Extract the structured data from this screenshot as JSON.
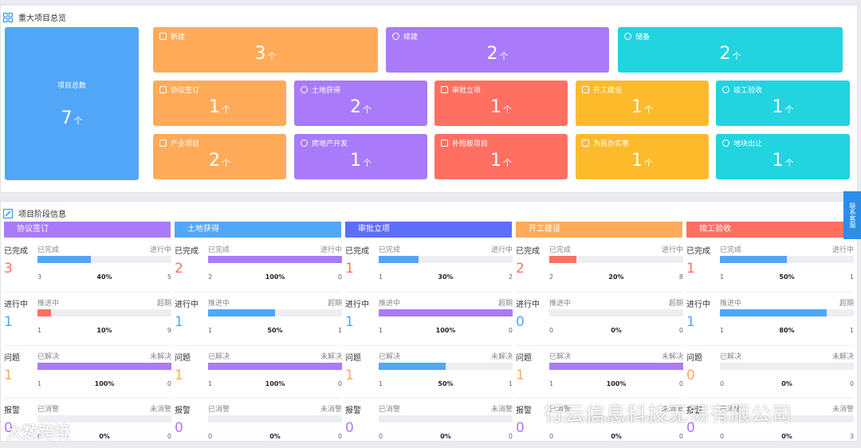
{
  "overview": {
    "title": "重大项目总览",
    "total": {
      "label": "项目总数",
      "value": "7",
      "unit": "个"
    },
    "cards": [
      {
        "label": "新建",
        "value": "3",
        "unit": "个",
        "icon": "calendar-icon"
      },
      {
        "label": "续建",
        "value": "2",
        "unit": "个",
        "icon": "search-icon"
      },
      {
        "label": "储备",
        "value": "2",
        "unit": "个",
        "icon": "check-circle-icon"
      },
      {
        "label": "协议签订",
        "value": "1",
        "unit": "个",
        "icon": "calendar-icon"
      },
      {
        "label": "土地获得",
        "value": "2",
        "unit": "个",
        "icon": "search-icon"
      },
      {
        "label": "审批立项",
        "value": "1",
        "unit": "个",
        "icon": "document-icon"
      },
      {
        "label": "开工建设",
        "value": "1",
        "unit": "个",
        "icon": "cube-icon"
      },
      {
        "label": "竣工验收",
        "value": "1",
        "unit": "个",
        "icon": "check-circle-icon"
      },
      {
        "label": "产业项目",
        "value": "2",
        "unit": "个",
        "icon": "calendar-icon"
      },
      {
        "label": "房地产开发",
        "value": "1",
        "unit": "个",
        "icon": "search-icon"
      },
      {
        "label": "补短板项目",
        "value": "1",
        "unit": "个",
        "icon": "document-icon"
      },
      {
        "label": "为民办实事",
        "value": "1",
        "unit": "个",
        "icon": "cube-icon"
      },
      {
        "label": "地块出让",
        "value": "1",
        "unit": "个",
        "icon": "check-circle-icon"
      }
    ]
  },
  "stages": {
    "title": "项目阶段信息",
    "columns": [
      {
        "name": "协议签订",
        "color": "#a97bfb",
        "metrics": [
          {
            "name": "已完成",
            "value": "3",
            "left": "已完成",
            "right": "进行中",
            "fill": 0.4,
            "lc": "3",
            "pct": "40%",
            "rc": "5"
          },
          {
            "name": "进行中",
            "value": "1",
            "left": "推进中",
            "right": "超期",
            "fill": 0.1,
            "lc": "1",
            "pct": "10%",
            "rc": "9"
          },
          {
            "name": "问题",
            "value": "1",
            "left": "已解决",
            "right": "未解决",
            "fill": 1.0,
            "lc": "1",
            "pct": "100%",
            "rc": "0"
          },
          {
            "name": "报警",
            "value": "0",
            "left": "已消警",
            "right": "未消警",
            "fill": 0,
            "lc": "0",
            "pct": "0%",
            "rc": "0"
          }
        ]
      },
      {
        "name": "土地获得",
        "color": "#52a6f8",
        "metrics": [
          {
            "name": "已完成",
            "value": "2",
            "left": "已完成",
            "right": "进行中",
            "fill": 1.0,
            "lc": "2",
            "pct": "100%",
            "rc": "0"
          },
          {
            "name": "进行中",
            "value": "1",
            "left": "推进中",
            "right": "超期",
            "fill": 0.5,
            "lc": "1",
            "pct": "50%",
            "rc": "1"
          },
          {
            "name": "问题",
            "value": "1",
            "left": "已解决",
            "right": "未解决",
            "fill": 1.0,
            "lc": "1",
            "pct": "100%",
            "rc": "0"
          },
          {
            "name": "报警",
            "value": "0",
            "left": "已消警",
            "right": "未消警",
            "fill": 0,
            "lc": "0",
            "pct": "0%",
            "rc": "0"
          }
        ]
      },
      {
        "name": "审批立项",
        "color": "#5d6ef9",
        "metrics": [
          {
            "name": "已完成",
            "value": "1",
            "left": "已完成",
            "right": "进行中",
            "fill": 0.3,
            "lc": "1",
            "pct": "30%",
            "rc": "2"
          },
          {
            "name": "进行中",
            "value": "1",
            "left": "推进中",
            "right": "超期",
            "fill": 1.0,
            "lc": "1",
            "pct": "100%",
            "rc": "0"
          },
          {
            "name": "问题",
            "value": "1",
            "left": "已解决",
            "right": "未解决",
            "fill": 0.5,
            "lc": "1",
            "pct": "50%",
            "rc": "1"
          },
          {
            "name": "报警",
            "value": "0",
            "left": "已消警",
            "right": "未消警",
            "fill": 0,
            "lc": "0",
            "pct": "0%",
            "rc": "0"
          }
        ]
      },
      {
        "name": "开工建设",
        "color": "#ffab5a",
        "metrics": [
          {
            "name": "已完成",
            "value": "2",
            "left": "已完成",
            "right": "进行中",
            "fill": 0.2,
            "lc": "2",
            "pct": "20%",
            "rc": "8"
          },
          {
            "name": "进行中",
            "value": "0",
            "left": "推进中",
            "right": "超期",
            "fill": 0,
            "lc": "0",
            "pct": "0%",
            "rc": "0"
          },
          {
            "name": "问题",
            "value": "1",
            "left": "已解决",
            "right": "未解决",
            "fill": 1.0,
            "lc": "1",
            "pct": "100%",
            "rc": "0"
          },
          {
            "name": "报警",
            "value": "0",
            "left": "已消警",
            "right": "未消警",
            "fill": 0,
            "lc": "0",
            "pct": "0%",
            "rc": "0"
          }
        ]
      },
      {
        "name": "竣工验收",
        "color": "#ff7063",
        "metrics": [
          {
            "name": "已完成",
            "value": "1",
            "left": "已完成",
            "right": "进行中",
            "fill": 0.5,
            "lc": "1",
            "pct": "50%",
            "rc": "1"
          },
          {
            "name": "进行中",
            "value": "1",
            "left": "推进中",
            "right": "超期",
            "fill": 0.8,
            "lc": "1",
            "pct": "80%",
            "rc": "1"
          },
          {
            "name": "问题",
            "value": "0",
            "left": "已解决",
            "right": "未解决",
            "fill": 0,
            "lc": "0",
            "pct": "0%",
            "rc": "0"
          },
          {
            "name": "报警",
            "value": "0",
            "left": "已消警",
            "right": "未消警",
            "fill": 0,
            "lc": "0",
            "pct": "0%",
            "rc": "3"
          }
        ]
      }
    ]
  },
  "metric_colors": [
    "#ff7063",
    "#52a6f8",
    "#ffab5a",
    "#a97bfb"
  ],
  "contact_tab": "联系客服",
  "watermarks": {
    "left": "大数跨境",
    "right": "行云信息科技无锡有限公司"
  }
}
